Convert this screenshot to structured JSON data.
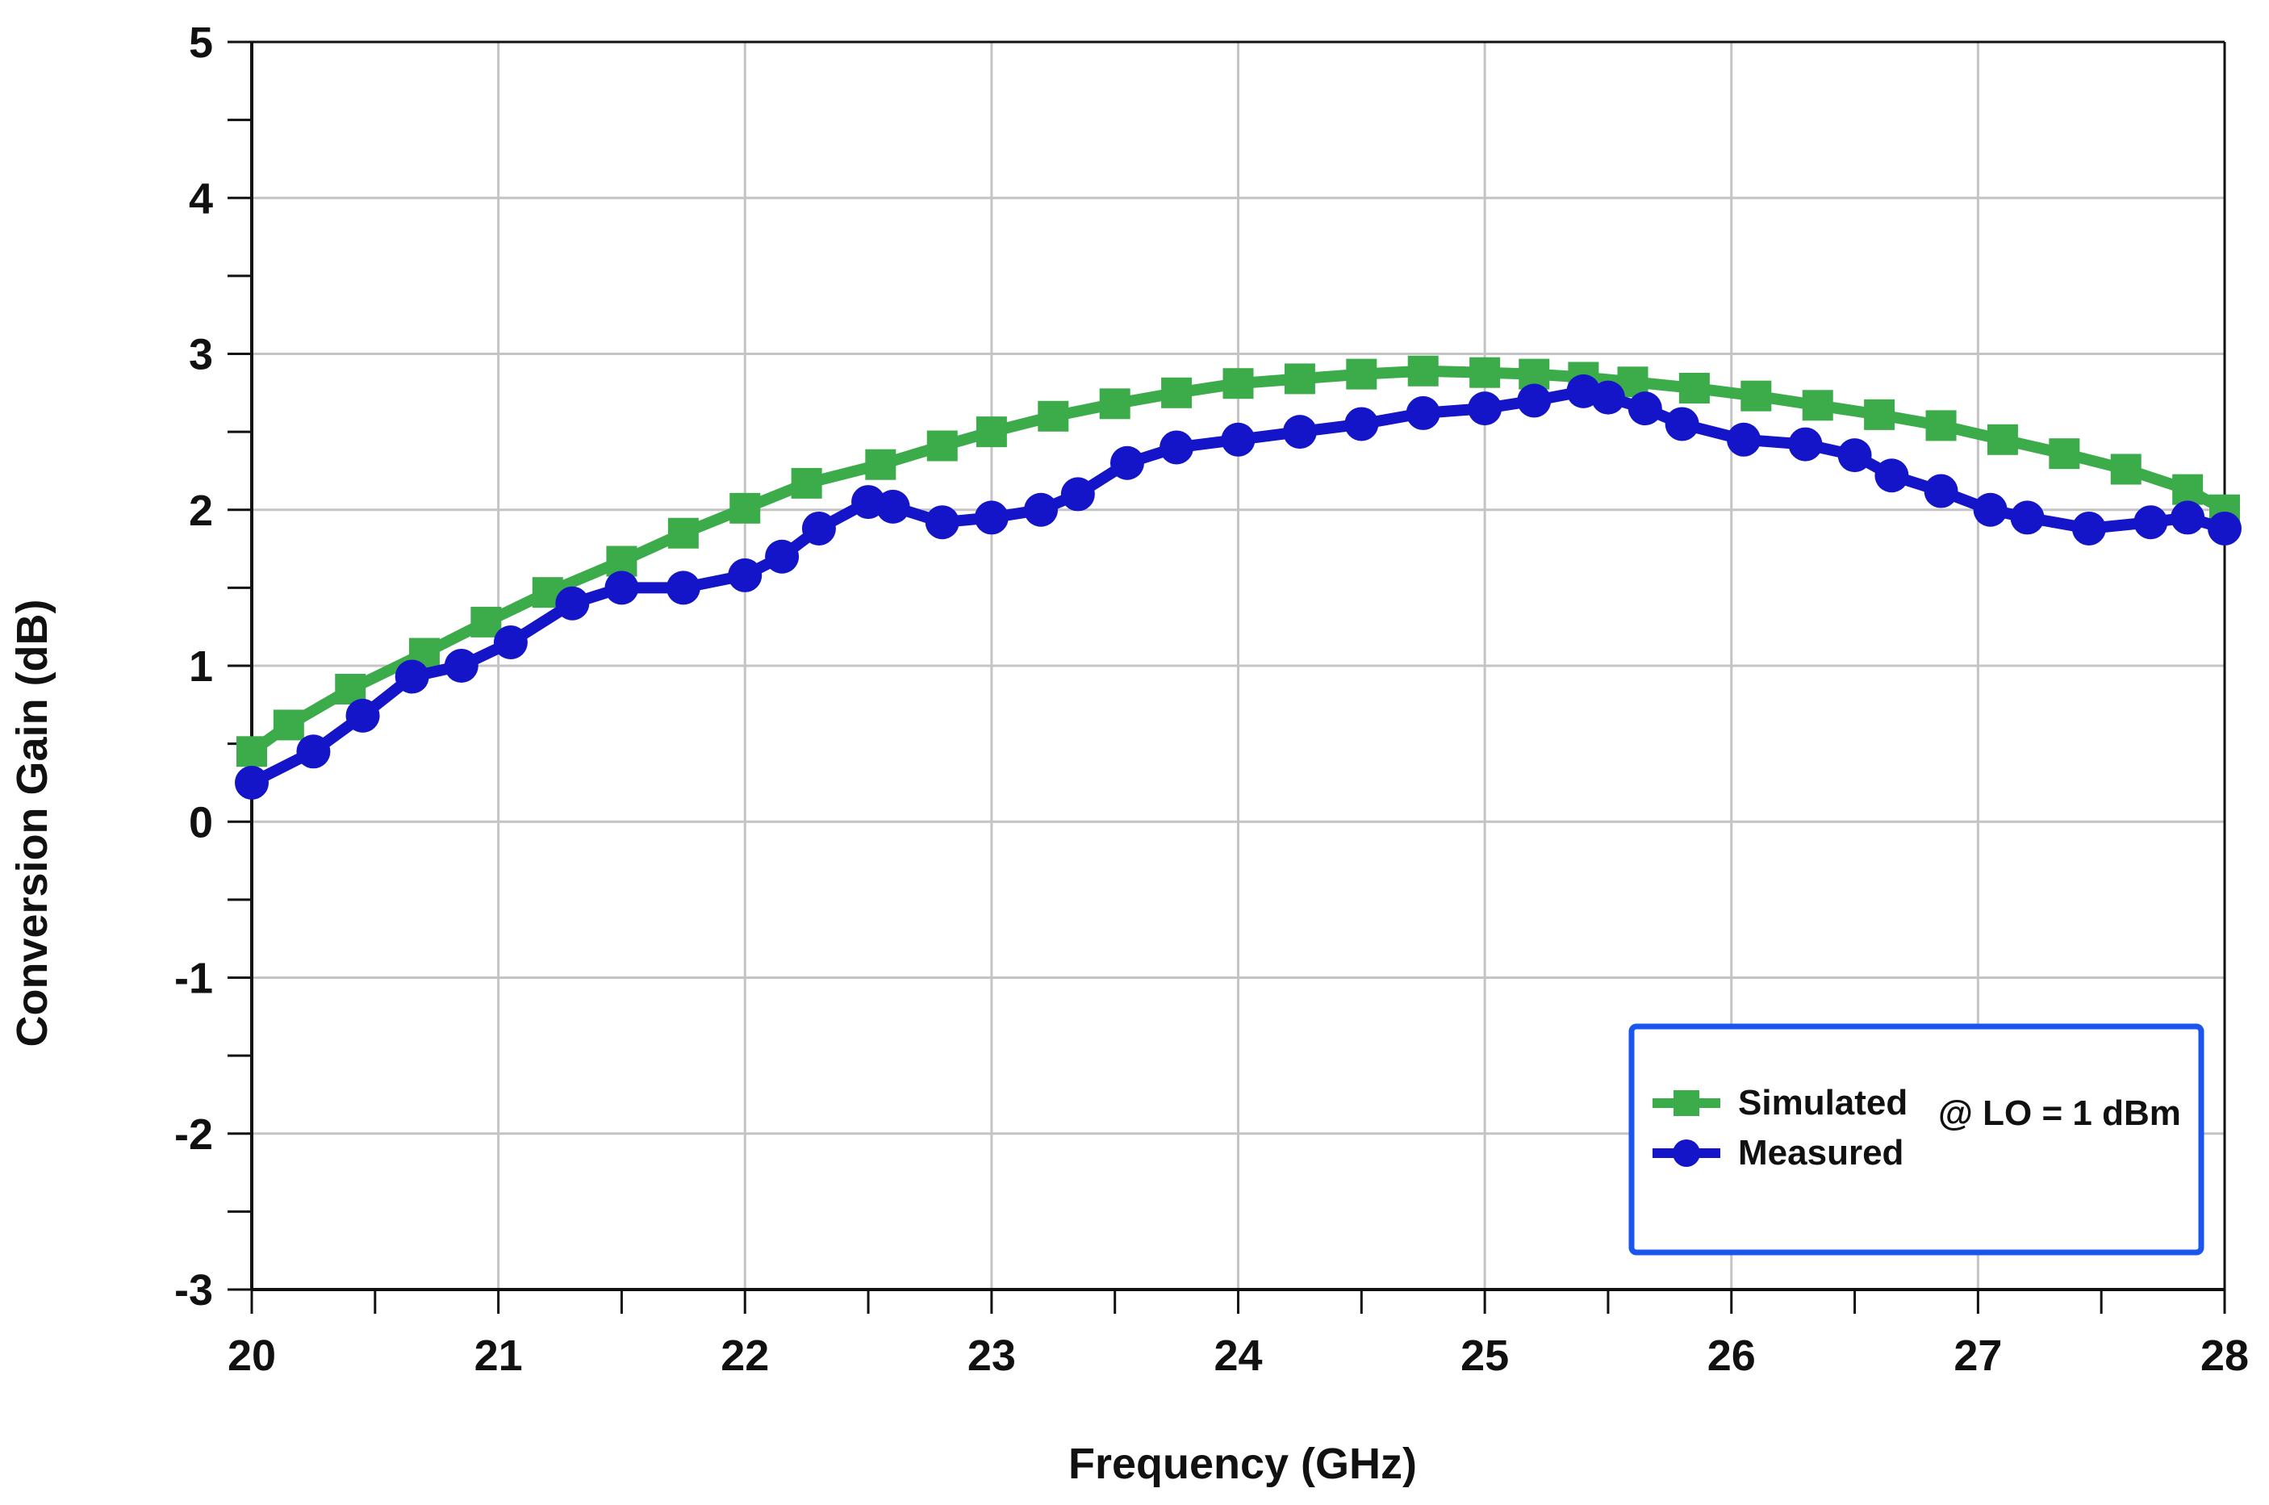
{
  "chart_data": {
    "type": "line",
    "title": "",
    "xlabel": "Frequency (GHz)",
    "ylabel": "Conversion Gain (dB)",
    "xlim": [
      20,
      28
    ],
    "ylim": [
      -3,
      5
    ],
    "xticks": [
      "20",
      "21",
      "22",
      "23",
      "24",
      "25",
      "26",
      "27",
      "28"
    ],
    "yticks": [
      "-3",
      "-2",
      "-1",
      "0",
      "1",
      "2",
      "3",
      "4",
      "5"
    ],
    "grid": true,
    "legend_position": "bottom-right",
    "annotation": "@ LO = 1 dBm",
    "series": [
      {
        "name": "Simulated",
        "color": "#3cab4a",
        "marker": "square",
        "x": [
          20.0,
          20.15,
          20.4,
          20.7,
          20.95,
          21.2,
          21.5,
          21.75,
          22.0,
          22.25,
          22.55,
          22.8,
          23.0,
          23.25,
          23.5,
          23.75,
          24.0,
          24.25,
          24.5,
          24.75,
          25.0,
          25.2,
          25.4,
          25.6,
          25.85,
          26.1,
          26.35,
          26.6,
          26.85,
          27.1,
          27.35,
          27.6,
          27.85,
          28.0
        ],
        "y": [
          0.45,
          0.62,
          0.85,
          1.08,
          1.28,
          1.47,
          1.67,
          1.85,
          2.01,
          2.17,
          2.29,
          2.41,
          2.5,
          2.6,
          2.68,
          2.75,
          2.81,
          2.84,
          2.87,
          2.89,
          2.88,
          2.87,
          2.85,
          2.82,
          2.78,
          2.73,
          2.67,
          2.61,
          2.54,
          2.45,
          2.36,
          2.26,
          2.13,
          2.0
        ]
      },
      {
        "name": "Measured",
        "color": "#1414c8",
        "marker": "circle",
        "x": [
          20.0,
          20.25,
          20.45,
          20.65,
          20.85,
          21.05,
          21.3,
          21.5,
          21.75,
          22.0,
          22.15,
          22.3,
          22.5,
          22.6,
          22.8,
          23.0,
          23.2,
          23.35,
          23.55,
          23.75,
          24.0,
          24.25,
          24.5,
          24.75,
          25.0,
          25.2,
          25.4,
          25.5,
          25.65,
          25.8,
          26.05,
          26.3,
          26.5,
          26.65,
          26.85,
          27.05,
          27.2,
          27.45,
          27.7,
          27.85,
          28.0
        ],
        "y": [
          0.25,
          0.45,
          0.68,
          0.93,
          1.0,
          1.15,
          1.4,
          1.5,
          1.5,
          1.58,
          1.7,
          1.88,
          2.05,
          2.02,
          1.92,
          1.95,
          2.0,
          2.1,
          2.3,
          2.4,
          2.45,
          2.5,
          2.55,
          2.62,
          2.65,
          2.7,
          2.76,
          2.72,
          2.65,
          2.55,
          2.45,
          2.42,
          2.35,
          2.22,
          2.12,
          2.0,
          1.95,
          1.88,
          1.92,
          1.95,
          1.88
        ]
      }
    ]
  }
}
